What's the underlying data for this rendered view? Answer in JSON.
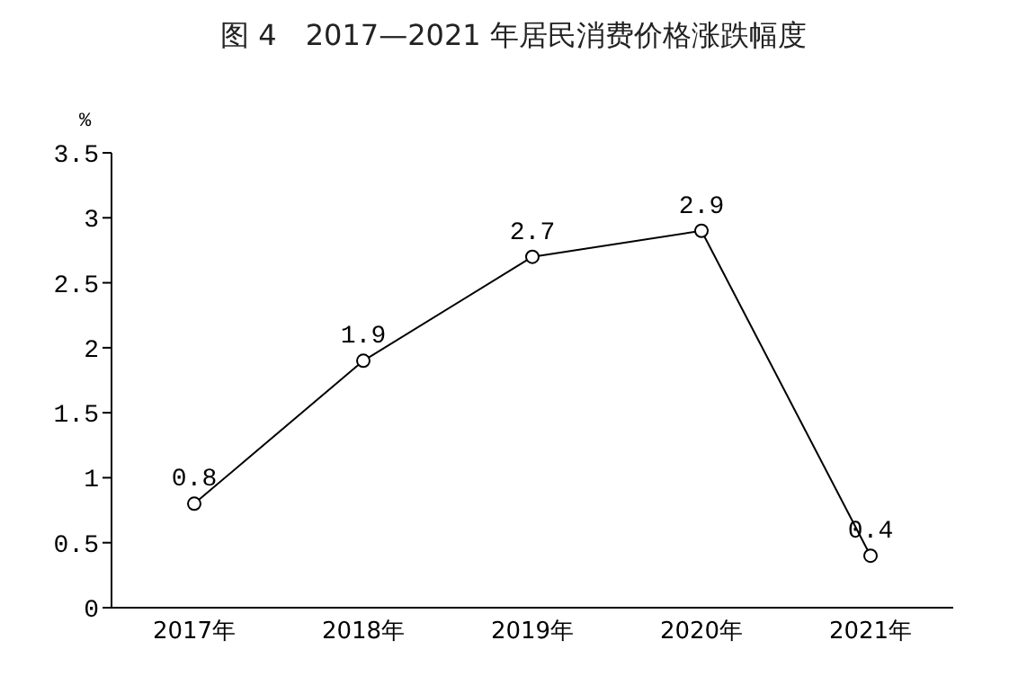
{
  "chart_data": {
    "type": "line",
    "title": "图 4　2017—2021 年居民消费价格涨跌幅度",
    "ylabel": "%",
    "categories": [
      "2017年",
      "2018年",
      "2019年",
      "2020年",
      "2021年"
    ],
    "series": [
      {
        "color": "#000000",
        "values": [
          0.8,
          1.9,
          2.7,
          2.9,
          0.4
        ]
      }
    ],
    "ylim": [
      0,
      3.5
    ],
    "yticks": [
      0,
      {
        "value": 0.5,
        "label": "0.5"
      },
      1,
      {
        "value": 1.5,
        "label": "1.5"
      },
      2,
      {
        "value": 2.5,
        "label": "2.5"
      },
      3,
      {
        "value": 3.5,
        "label": "3.5"
      }
    ],
    "marker": "circle",
    "data_labels": true,
    "grid": false,
    "legend": false
  }
}
